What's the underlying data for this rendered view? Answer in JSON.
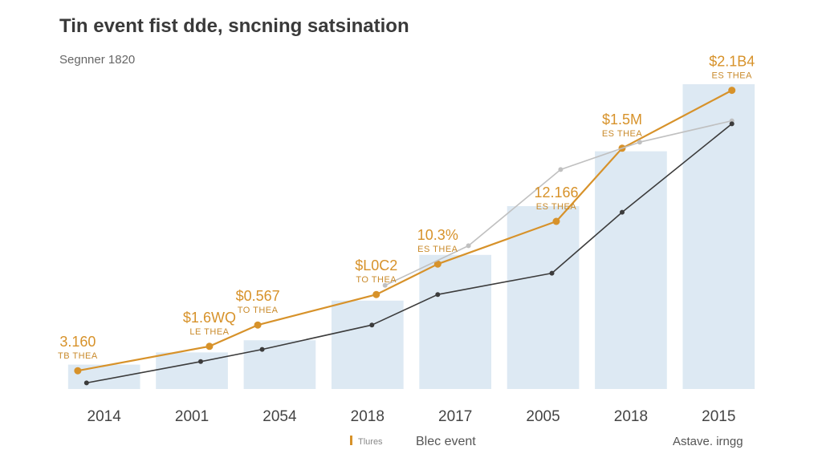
{
  "chart_data": {
    "type": "bar",
    "title": "Tin event fist dde, sncning satsination",
    "subtitle": "Segnner 1820",
    "categories": [
      "2014",
      "2001",
      "2054",
      "2018",
      "2017",
      "2005",
      "2018",
      "2015"
    ],
    "ylim": [
      0,
      100
    ],
    "grid": false,
    "bars": {
      "name": "Blec event",
      "color": "#dde9f3",
      "values": [
        8,
        12,
        16,
        29,
        44,
        60,
        78,
        100
      ]
    },
    "series": [
      {
        "name": "Tlures",
        "color": "#d7922a",
        "values": [
          6,
          14,
          21,
          31,
          41,
          55,
          79,
          98
        ],
        "x_offsets": [
          -0.3,
          0.2,
          -0.25,
          0.1,
          -0.2,
          0.15,
          -0.1,
          0.15
        ]
      },
      {
        "name": "grey-series",
        "color": "#c0c0c0",
        "values": [
          null,
          null,
          null,
          34,
          47,
          72,
          81,
          88
        ],
        "x_offsets": [
          0,
          0,
          0.1,
          0.2,
          0.15,
          0.2,
          0.1,
          0.15
        ]
      },
      {
        "name": "dark-series",
        "color": "#3c3c3c",
        "values": [
          2,
          9,
          13,
          21,
          31,
          38,
          58,
          87
        ],
        "x_offsets": [
          -0.2,
          0.1,
          -0.2,
          0.05,
          -0.2,
          0.1,
          -0.1,
          0.15
        ]
      }
    ],
    "annotations": [
      {
        "value": "3.160",
        "sub": "TB THEA",
        "cat": 0
      },
      {
        "value": "$1.6WQ",
        "sub": "LE THEA",
        "cat": 1
      },
      {
        "value": "$0.567",
        "sub": "TO THEA",
        "cat": 2
      },
      {
        "value": "$L0C2",
        "sub": "TO THEA",
        "cat": 3
      },
      {
        "value": "10.3%",
        "sub": "ES THEA",
        "cat": 4
      },
      {
        "value": "12.166",
        "sub": "ES THEA",
        "cat": 5
      },
      {
        "value": "$1.5M",
        "sub": "ES THEA",
        "cat": 6
      },
      {
        "value": "$2.1B4",
        "sub": "ES THEA",
        "cat": 7
      }
    ],
    "legend": [
      {
        "label": "Tlures",
        "color": "#d7922a",
        "style": "small"
      },
      {
        "label": "Blec event",
        "color": "#555555",
        "style": "normal"
      }
    ],
    "source": "Astave. irngg"
  }
}
